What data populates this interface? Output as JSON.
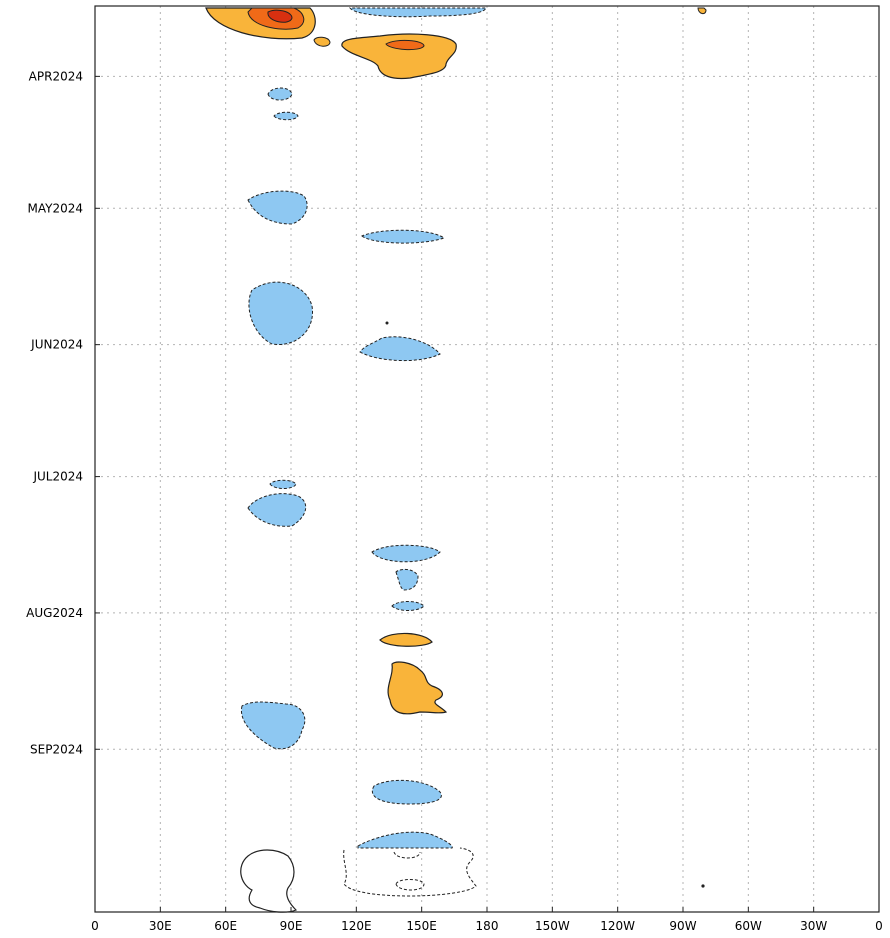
{
  "chart_data": {
    "type": "heatmap",
    "title": "",
    "xlabel": "",
    "ylabel": "",
    "grid": true,
    "x_axis": {
      "label_text": [
        "0",
        "30E",
        "60E",
        "90E",
        "120E",
        "150E",
        "180",
        "150W",
        "120W",
        "90W",
        "60W",
        "30W",
        "0"
      ],
      "label_values": [
        0,
        30,
        60,
        90,
        120,
        150,
        180,
        210,
        240,
        270,
        300,
        330,
        360
      ],
      "range": [
        0,
        360
      ]
    },
    "y_axis": {
      "label_text": [
        "APR2024",
        "MAY2024",
        "JUN2024",
        "JUL2024",
        "AUG2024",
        "SEP2024"
      ],
      "label_values": [
        "2024-04-01",
        "2024-05-01",
        "2024-06-01",
        "2024-07-01",
        "2024-08-01",
        "2024-09-01"
      ],
      "range": [
        "2024-03-16",
        "2024-10-08"
      ],
      "direction": "top-to-bottom"
    },
    "colors": {
      "negative_fill": "#8ec8f2",
      "positive_fill": "#f9b43a",
      "strong_positive_fill": "#f06a18",
      "strongest_positive_fill": "#d83010",
      "contour_line": "#222222",
      "grid": "#b4b4b4"
    }
  }
}
